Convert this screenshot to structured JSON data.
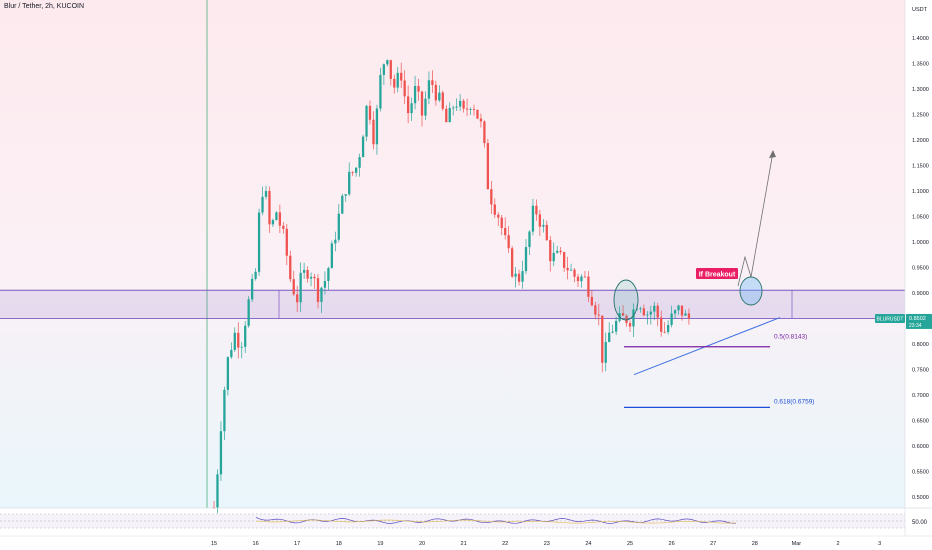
{
  "header": {
    "title": "Blur / Tether, 2h, KUCOIN"
  },
  "price_axis": {
    "currency": "USDT",
    "labels": [
      "1.4000",
      "1.3500",
      "1.3000",
      "1.2500",
      "1.2000",
      "1.1500",
      "1.1000",
      "1.0500",
      "1.0000",
      "0.9500",
      "0.9000",
      "0.8500",
      "0.8000",
      "0.7500",
      "0.7000",
      "0.6500",
      "0.6000",
      "0.5500",
      "0.5000"
    ],
    "symbol_tag": "BLURUSDT",
    "last_price": "0.8502",
    "countdown": "23:34"
  },
  "time_axis": {
    "labels": [
      "15",
      "16",
      "17",
      "18",
      "19",
      "20",
      "21",
      "22",
      "23",
      "24",
      "25",
      "26",
      "27",
      "28",
      "Mar",
      "2",
      "3"
    ]
  },
  "rsi": {
    "label": "50.00",
    "value": 50.0
  },
  "annotations": {
    "fib_05": "0.5(0.8143)",
    "fib_0618": "0.618(0.6759)",
    "breakout": "If Breakout"
  },
  "colors": {
    "up": "#26a69a",
    "down": "#ef5350",
    "zone_line": "#7e57c2",
    "trendline": "#3d6fe0",
    "fib05": "#7b1fa2",
    "fib0618": "#1e4fd8",
    "breakout_bg": "#e91e63",
    "price_tag": "#26a69a"
  },
  "chart_data": {
    "type": "candlestick",
    "title": "Blur / Tether, 2h, KUCOIN",
    "series": [
      {
        "name": "BLURUSDT",
        "anchors": [
          [
            15.0,
            0.48
          ],
          [
            15.08,
            0.55
          ],
          [
            15.2,
            0.68
          ],
          [
            15.35,
            0.78
          ],
          [
            15.5,
            0.82
          ],
          [
            15.65,
            0.8
          ],
          [
            15.8,
            0.87
          ],
          [
            16.0,
            0.94
          ],
          [
            16.1,
            1.07
          ],
          [
            16.2,
            1.12
          ],
          [
            16.35,
            1.02
          ],
          [
            16.5,
            1.06
          ],
          [
            16.7,
            1.0
          ],
          [
            16.85,
            0.92
          ],
          [
            17.0,
            0.89
          ],
          [
            17.1,
            0.93
          ],
          [
            17.3,
            0.95
          ],
          [
            17.5,
            0.9
          ],
          [
            17.7,
            0.93
          ],
          [
            18.0,
            1.05
          ],
          [
            18.2,
            1.12
          ],
          [
            18.45,
            1.15
          ],
          [
            18.7,
            1.28
          ],
          [
            18.85,
            1.2
          ],
          [
            19.0,
            1.32
          ],
          [
            19.15,
            1.38
          ],
          [
            19.3,
            1.3
          ],
          [
            19.5,
            1.33
          ],
          [
            19.65,
            1.25
          ],
          [
            19.85,
            1.3
          ],
          [
            20.0,
            1.25
          ],
          [
            20.2,
            1.32
          ],
          [
            20.4,
            1.28
          ],
          [
            20.6,
            1.23
          ],
          [
            20.8,
            1.28
          ],
          [
            21.0,
            1.25
          ],
          [
            21.2,
            1.28
          ],
          [
            21.45,
            1.22
          ],
          [
            21.6,
            1.1
          ],
          [
            21.85,
            1.05
          ],
          [
            22.0,
            1.0
          ],
          [
            22.15,
            0.95
          ],
          [
            22.3,
            0.92
          ],
          [
            22.5,
            0.98
          ],
          [
            22.7,
            1.07
          ],
          [
            22.9,
            1.03
          ],
          [
            23.1,
            0.97
          ],
          [
            23.3,
            0.97
          ],
          [
            23.5,
            0.95
          ],
          [
            23.7,
            0.93
          ],
          [
            23.9,
            0.93
          ],
          [
            24.1,
            0.89
          ],
          [
            24.25,
            0.85
          ],
          [
            24.35,
            0.76
          ],
          [
            24.5,
            0.82
          ],
          [
            24.65,
            0.84
          ],
          [
            24.85,
            0.85
          ],
          [
            25.0,
            0.85
          ],
          [
            25.2,
            0.89
          ],
          [
            25.4,
            0.86
          ],
          [
            25.6,
            0.87
          ],
          [
            25.8,
            0.82
          ],
          [
            26.0,
            0.85
          ],
          [
            26.2,
            0.87
          ],
          [
            26.35,
            0.85
          ],
          [
            26.45,
            0.85
          ]
        ],
        "ohlc_sample": [
          {
            "date": "15",
            "open": 0.48,
            "high": 0.56,
            "low": 0.47,
            "close": 0.55
          },
          {
            "date": "16",
            "open": 0.94,
            "high": 1.1,
            "low": 0.92,
            "close": 1.07
          },
          {
            "date": "19",
            "open": 1.32,
            "high": 1.39,
            "low": 1.29,
            "close": 1.38
          },
          {
            "date": "22",
            "open": 1.0,
            "high": 1.01,
            "low": 0.93,
            "close": 0.95
          },
          {
            "date": "25",
            "open": 0.76,
            "high": 0.84,
            "low": 0.74,
            "close": 0.82
          },
          {
            "date": "27",
            "open": 0.85,
            "high": 0.87,
            "low": 0.84,
            "close": 0.8502
          }
        ]
      }
    ],
    "x_labels": [
      "15",
      "16",
      "17",
      "18",
      "19",
      "20",
      "21",
      "22",
      "23",
      "24",
      "25",
      "26",
      "27",
      "28",
      "Mar",
      "2",
      "3"
    ],
    "ylim": [
      0.48,
      1.42
    ],
    "yscale": "linear",
    "xlabel": "",
    "ylabel": "",
    "levels": {
      "resistance_zone": [
        0.8503,
        0.9055
      ],
      "fib_0_5": 0.8143,
      "fib_0_618": 0.6759
    },
    "ascending_trendline": {
      "from": [
        "25",
        0.74
      ],
      "to": [
        "28",
        0.852
      ]
    },
    "projection": {
      "from": [
        "27",
        0.89
      ],
      "to": [
        "28",
        1.18
      ]
    },
    "grid": false,
    "legend": "none"
  }
}
